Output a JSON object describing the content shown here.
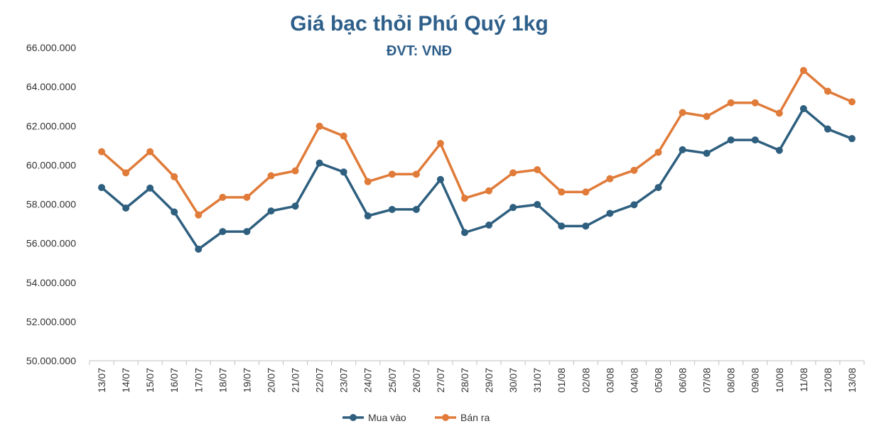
{
  "chart_data": {
    "type": "line",
    "title": "Giá bạc thỏi Phú Quý 1kg",
    "subtitle": "ĐVT: VNĐ",
    "xlabel": "",
    "ylabel": "",
    "ylim": [
      50000000,
      66000000
    ],
    "y_ticks": [
      50000000,
      52000000,
      54000000,
      56000000,
      58000000,
      60000000,
      62000000,
      64000000,
      66000000
    ],
    "y_tick_labels": [
      "50.000.000",
      "52.000.000",
      "54.000.000",
      "56.000.000",
      "58.000.000",
      "60.000.000",
      "62.000.000",
      "64.000.000",
      "66.000.000"
    ],
    "categories": [
      "13/07",
      "14/07",
      "15/07",
      "16/07",
      "17/07",
      "18/07",
      "19/07",
      "20/07",
      "21/07",
      "22/07",
      "23/07",
      "24/07",
      "25/07",
      "26/07",
      "27/07",
      "28/07",
      "29/07",
      "30/07",
      "31/07",
      "01/08",
      "02/08",
      "03/08",
      "04/08",
      "05/08",
      "06/08",
      "07/08",
      "08/08",
      "09/08",
      "10/08",
      "11/08",
      "12/08",
      "13/08"
    ],
    "grid": false,
    "legend_position": "bottom",
    "series": [
      {
        "name": "Mua vào",
        "color": "#2e5f7f",
        "values": [
          58850000,
          57800000,
          58820000,
          57600000,
          55700000,
          56600000,
          56600000,
          57650000,
          57900000,
          60100000,
          59640000,
          57400000,
          57730000,
          57730000,
          59260000,
          56550000,
          56930000,
          57830000,
          57980000,
          56880000,
          56880000,
          57530000,
          57970000,
          58850000,
          60780000,
          60600000,
          61280000,
          61280000,
          60750000,
          62880000,
          61840000,
          61350000
        ]
      },
      {
        "name": "Bán ra",
        "color": "#e07b39",
        "values": [
          60680000,
          59600000,
          60680000,
          59400000,
          57450000,
          58350000,
          58350000,
          59450000,
          59700000,
          61980000,
          61480000,
          59150000,
          59530000,
          59530000,
          61100000,
          58300000,
          58680000,
          59600000,
          59760000,
          58620000,
          58620000,
          59300000,
          59730000,
          60650000,
          62680000,
          62480000,
          63180000,
          63180000,
          62650000,
          64830000,
          63770000,
          63230000
        ]
      }
    ]
  }
}
